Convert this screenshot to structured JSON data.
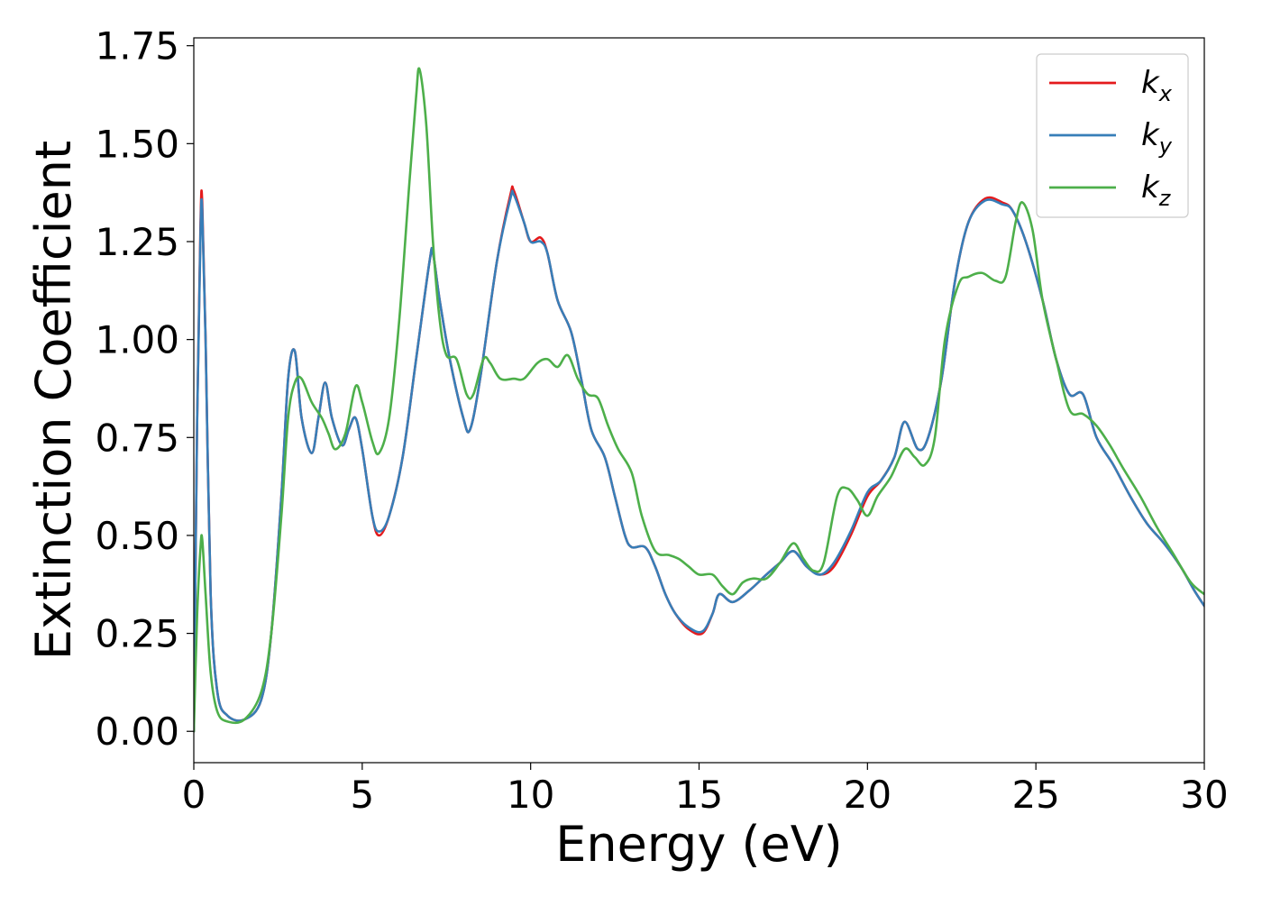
{
  "chart_data": {
    "type": "line",
    "xlabel": "Energy (eV)",
    "ylabel": "Extinction Coefficient",
    "xlim": [
      0,
      30
    ],
    "ylim": [
      -0.08,
      1.77
    ],
    "xticks": [
      0,
      5,
      10,
      15,
      20,
      25,
      30
    ],
    "xtick_labels": [
      "0",
      "5",
      "10",
      "15",
      "20",
      "25",
      "30"
    ],
    "yticks": [
      0,
      0.25,
      0.5,
      0.75,
      1.0,
      1.25,
      1.5,
      1.75
    ],
    "ytick_labels": [
      "0.00",
      "0.25",
      "0.50",
      "0.75",
      "1.00",
      "1.25",
      "1.50",
      "1.75"
    ],
    "grid": false,
    "legend_position": "top-right",
    "series": [
      {
        "name": "k_x",
        "label_main": "k",
        "label_sub": "x",
        "color": "#e41a1c",
        "points": [
          [
            0,
            0
          ],
          [
            0.1,
            0.8
          ],
          [
            0.2,
            1.3
          ],
          [
            0.25,
            1.35
          ],
          [
            0.35,
            1.0
          ],
          [
            0.5,
            0.35
          ],
          [
            0.7,
            0.1
          ],
          [
            1.0,
            0.04
          ],
          [
            1.5,
            0.03
          ],
          [
            2.0,
            0.08
          ],
          [
            2.3,
            0.25
          ],
          [
            2.6,
            0.6
          ],
          [
            2.8,
            0.9
          ],
          [
            3.0,
            0.97
          ],
          [
            3.2,
            0.8
          ],
          [
            3.5,
            0.71
          ],
          [
            3.7,
            0.8
          ],
          [
            3.9,
            0.89
          ],
          [
            4.1,
            0.8
          ],
          [
            4.4,
            0.73
          ],
          [
            4.6,
            0.77
          ],
          [
            4.8,
            0.8
          ],
          [
            5.0,
            0.72
          ],
          [
            5.3,
            0.55
          ],
          [
            5.5,
            0.5
          ],
          [
            5.8,
            0.55
          ],
          [
            6.2,
            0.7
          ],
          [
            6.6,
            0.95
          ],
          [
            7.0,
            1.2
          ],
          [
            7.1,
            1.22
          ],
          [
            7.3,
            1.1
          ],
          [
            7.6,
            0.95
          ],
          [
            8.0,
            0.8
          ],
          [
            8.2,
            0.77
          ],
          [
            8.5,
            0.9
          ],
          [
            9.0,
            1.2
          ],
          [
            9.4,
            1.37
          ],
          [
            9.5,
            1.38
          ],
          [
            9.8,
            1.3
          ],
          [
            10.0,
            1.25
          ],
          [
            10.3,
            1.26
          ],
          [
            10.5,
            1.22
          ],
          [
            10.8,
            1.1
          ],
          [
            11.2,
            1.02
          ],
          [
            11.5,
            0.9
          ],
          [
            11.8,
            0.77
          ],
          [
            12.2,
            0.7
          ],
          [
            12.5,
            0.6
          ],
          [
            12.8,
            0.5
          ],
          [
            13.0,
            0.47
          ],
          [
            13.4,
            0.47
          ],
          [
            13.7,
            0.42
          ],
          [
            14.0,
            0.35
          ],
          [
            14.3,
            0.3
          ],
          [
            14.7,
            0.26
          ],
          [
            15.1,
            0.25
          ],
          [
            15.4,
            0.3
          ],
          [
            15.6,
            0.35
          ],
          [
            16.0,
            0.33
          ],
          [
            16.5,
            0.36
          ],
          [
            17.0,
            0.4
          ],
          [
            17.4,
            0.43
          ],
          [
            17.8,
            0.46
          ],
          [
            18.2,
            0.42
          ],
          [
            18.6,
            0.4
          ],
          [
            19.0,
            0.42
          ],
          [
            19.5,
            0.5
          ],
          [
            20.0,
            0.6
          ],
          [
            20.4,
            0.64
          ],
          [
            20.8,
            0.7
          ],
          [
            21.1,
            0.79
          ],
          [
            21.5,
            0.72
          ],
          [
            21.8,
            0.75
          ],
          [
            22.2,
            0.9
          ],
          [
            22.6,
            1.15
          ],
          [
            23.0,
            1.3
          ],
          [
            23.5,
            1.36
          ],
          [
            24.0,
            1.35
          ],
          [
            24.3,
            1.33
          ],
          [
            24.7,
            1.25
          ],
          [
            25.2,
            1.1
          ],
          [
            25.6,
            0.95
          ],
          [
            26.0,
            0.86
          ],
          [
            26.4,
            0.86
          ],
          [
            26.8,
            0.75
          ],
          [
            27.3,
            0.68
          ],
          [
            27.8,
            0.6
          ],
          [
            28.3,
            0.53
          ],
          [
            28.8,
            0.48
          ],
          [
            29.3,
            0.42
          ],
          [
            29.7,
            0.36
          ],
          [
            30.0,
            0.32
          ]
        ]
      },
      {
        "name": "k_y",
        "label_main": "k",
        "label_sub": "y",
        "color": "#377eb8",
        "points": [
          [
            0,
            0
          ],
          [
            0.1,
            0.8
          ],
          [
            0.2,
            1.28
          ],
          [
            0.25,
            1.33
          ],
          [
            0.35,
            1.0
          ],
          [
            0.5,
            0.35
          ],
          [
            0.7,
            0.1
          ],
          [
            1.0,
            0.04
          ],
          [
            1.5,
            0.03
          ],
          [
            2.0,
            0.08
          ],
          [
            2.3,
            0.25
          ],
          [
            2.6,
            0.6
          ],
          [
            2.8,
            0.9
          ],
          [
            3.0,
            0.97
          ],
          [
            3.2,
            0.8
          ],
          [
            3.5,
            0.71
          ],
          [
            3.7,
            0.8
          ],
          [
            3.9,
            0.89
          ],
          [
            4.1,
            0.8
          ],
          [
            4.4,
            0.73
          ],
          [
            4.6,
            0.77
          ],
          [
            4.8,
            0.8
          ],
          [
            5.0,
            0.72
          ],
          [
            5.3,
            0.55
          ],
          [
            5.5,
            0.51
          ],
          [
            5.8,
            0.55
          ],
          [
            6.2,
            0.7
          ],
          [
            6.6,
            0.95
          ],
          [
            7.0,
            1.2
          ],
          [
            7.1,
            1.22
          ],
          [
            7.3,
            1.1
          ],
          [
            7.6,
            0.95
          ],
          [
            8.0,
            0.8
          ],
          [
            8.2,
            0.77
          ],
          [
            8.5,
            0.9
          ],
          [
            9.0,
            1.2
          ],
          [
            9.4,
            1.36
          ],
          [
            9.5,
            1.37
          ],
          [
            9.8,
            1.3
          ],
          [
            10.0,
            1.25
          ],
          [
            10.3,
            1.25
          ],
          [
            10.5,
            1.22
          ],
          [
            10.8,
            1.1
          ],
          [
            11.2,
            1.02
          ],
          [
            11.5,
            0.9
          ],
          [
            11.8,
            0.77
          ],
          [
            12.2,
            0.7
          ],
          [
            12.5,
            0.6
          ],
          [
            12.8,
            0.5
          ],
          [
            13.0,
            0.47
          ],
          [
            13.4,
            0.47
          ],
          [
            13.7,
            0.42
          ],
          [
            14.0,
            0.35
          ],
          [
            14.3,
            0.3
          ],
          [
            14.7,
            0.265
          ],
          [
            15.1,
            0.255
          ],
          [
            15.4,
            0.3
          ],
          [
            15.6,
            0.35
          ],
          [
            16.0,
            0.33
          ],
          [
            16.5,
            0.36
          ],
          [
            17.0,
            0.4
          ],
          [
            17.4,
            0.43
          ],
          [
            17.8,
            0.46
          ],
          [
            18.2,
            0.42
          ],
          [
            18.6,
            0.4
          ],
          [
            19.0,
            0.43
          ],
          [
            19.5,
            0.51
          ],
          [
            20.0,
            0.61
          ],
          [
            20.4,
            0.64
          ],
          [
            20.8,
            0.7
          ],
          [
            21.1,
            0.79
          ],
          [
            21.5,
            0.72
          ],
          [
            21.8,
            0.75
          ],
          [
            22.2,
            0.9
          ],
          [
            22.6,
            1.15
          ],
          [
            23.0,
            1.3
          ],
          [
            23.5,
            1.355
          ],
          [
            24.0,
            1.345
          ],
          [
            24.3,
            1.33
          ],
          [
            24.7,
            1.25
          ],
          [
            25.2,
            1.1
          ],
          [
            25.6,
            0.95
          ],
          [
            26.0,
            0.86
          ],
          [
            26.4,
            0.86
          ],
          [
            26.8,
            0.75
          ],
          [
            27.3,
            0.68
          ],
          [
            27.8,
            0.6
          ],
          [
            28.3,
            0.53
          ],
          [
            28.8,
            0.48
          ],
          [
            29.3,
            0.42
          ],
          [
            29.7,
            0.36
          ],
          [
            30.0,
            0.32
          ]
        ]
      },
      {
        "name": "k_z",
        "label_main": "k",
        "label_sub": "z",
        "color": "#4daf4a",
        "points": [
          [
            0,
            0
          ],
          [
            0.1,
            0.3
          ],
          [
            0.2,
            0.47
          ],
          [
            0.25,
            0.49
          ],
          [
            0.35,
            0.35
          ],
          [
            0.5,
            0.15
          ],
          [
            0.7,
            0.05
          ],
          [
            1.0,
            0.025
          ],
          [
            1.5,
            0.03
          ],
          [
            2.0,
            0.1
          ],
          [
            2.3,
            0.25
          ],
          [
            2.6,
            0.55
          ],
          [
            2.8,
            0.8
          ],
          [
            3.0,
            0.89
          ],
          [
            3.2,
            0.9
          ],
          [
            3.5,
            0.84
          ],
          [
            3.8,
            0.8
          ],
          [
            4.0,
            0.76
          ],
          [
            4.2,
            0.72
          ],
          [
            4.5,
            0.76
          ],
          [
            4.8,
            0.88
          ],
          [
            5.0,
            0.84
          ],
          [
            5.3,
            0.74
          ],
          [
            5.5,
            0.71
          ],
          [
            5.8,
            0.8
          ],
          [
            6.1,
            1.05
          ],
          [
            6.4,
            1.4
          ],
          [
            6.6,
            1.62
          ],
          [
            6.7,
            1.69
          ],
          [
            6.9,
            1.55
          ],
          [
            7.1,
            1.25
          ],
          [
            7.3,
            1.05
          ],
          [
            7.5,
            0.96
          ],
          [
            7.8,
            0.95
          ],
          [
            8.1,
            0.86
          ],
          [
            8.3,
            0.86
          ],
          [
            8.6,
            0.95
          ],
          [
            8.8,
            0.94
          ],
          [
            9.1,
            0.9
          ],
          [
            9.5,
            0.9
          ],
          [
            9.8,
            0.9
          ],
          [
            10.2,
            0.94
          ],
          [
            10.5,
            0.95
          ],
          [
            10.8,
            0.93
          ],
          [
            11.1,
            0.96
          ],
          [
            11.4,
            0.9
          ],
          [
            11.7,
            0.86
          ],
          [
            12.0,
            0.85
          ],
          [
            12.3,
            0.78
          ],
          [
            12.6,
            0.72
          ],
          [
            13.0,
            0.66
          ],
          [
            13.3,
            0.55
          ],
          [
            13.7,
            0.46
          ],
          [
            14.1,
            0.45
          ],
          [
            14.4,
            0.44
          ],
          [
            14.7,
            0.42
          ],
          [
            15.0,
            0.4
          ],
          [
            15.4,
            0.4
          ],
          [
            15.7,
            0.37
          ],
          [
            16.0,
            0.35
          ],
          [
            16.3,
            0.38
          ],
          [
            16.6,
            0.39
          ],
          [
            17.0,
            0.39
          ],
          [
            17.4,
            0.43
          ],
          [
            17.8,
            0.48
          ],
          [
            18.1,
            0.44
          ],
          [
            18.4,
            0.41
          ],
          [
            18.7,
            0.43
          ],
          [
            19.1,
            0.6
          ],
          [
            19.4,
            0.62
          ],
          [
            19.7,
            0.59
          ],
          [
            20.0,
            0.55
          ],
          [
            20.3,
            0.6
          ],
          [
            20.7,
            0.65
          ],
          [
            21.1,
            0.72
          ],
          [
            21.4,
            0.7
          ],
          [
            21.7,
            0.68
          ],
          [
            22.0,
            0.75
          ],
          [
            22.3,
            1.0
          ],
          [
            22.7,
            1.14
          ],
          [
            23.0,
            1.16
          ],
          [
            23.4,
            1.17
          ],
          [
            23.8,
            1.15
          ],
          [
            24.1,
            1.16
          ],
          [
            24.4,
            1.3
          ],
          [
            24.6,
            1.35
          ],
          [
            24.9,
            1.28
          ],
          [
            25.2,
            1.1
          ],
          [
            25.6,
            0.95
          ],
          [
            26.0,
            0.82
          ],
          [
            26.4,
            0.81
          ],
          [
            26.8,
            0.78
          ],
          [
            27.2,
            0.73
          ],
          [
            27.6,
            0.67
          ],
          [
            28.1,
            0.6
          ],
          [
            28.6,
            0.52
          ],
          [
            29.1,
            0.45
          ],
          [
            29.6,
            0.38
          ],
          [
            30.0,
            0.35
          ]
        ]
      }
    ]
  }
}
